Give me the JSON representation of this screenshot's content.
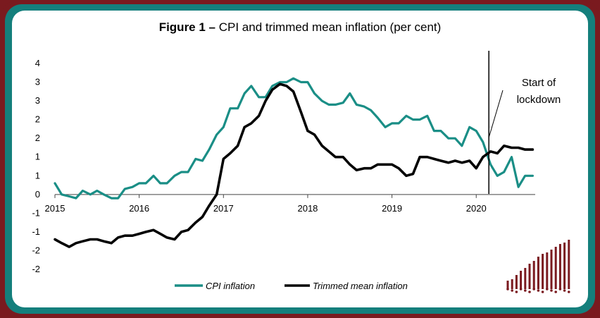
{
  "figure": {
    "title_bold": "Figure 1 –",
    "title_rest": " CPI and trimmed mean inflation (per cent)"
  },
  "chart_data": {
    "type": "line",
    "title": "Figure 1 – CPI and trimmed mean inflation (per cent)",
    "xlabel": "",
    "ylabel": "",
    "y_tick_labels": [
      "4",
      "3",
      "3",
      "2",
      "2",
      "1",
      "1",
      "0",
      "-1",
      "-1",
      "-2",
      "-2"
    ],
    "y_ticks": [
      3.5,
      3,
      2.5,
      2,
      1.5,
      1,
      0.5,
      0,
      -0.5,
      -1,
      -1.5,
      -2
    ],
    "ylim": [
      -2,
      3.5
    ],
    "x_tick_labels": [
      "2015",
      "2016",
      "2017",
      "2018",
      "2019",
      "2020"
    ],
    "x_ticks": [
      2015,
      2016,
      2017,
      2018,
      2019,
      2020
    ],
    "xlim": [
      2015,
      2020.7
    ],
    "legend_position": "bottom",
    "grid": false,
    "series": [
      {
        "name": "CPI inflation",
        "color": "#1a8e86",
        "x": [
          2015.0,
          2015.08,
          2015.17,
          2015.25,
          2015.33,
          2015.42,
          2015.5,
          2015.58,
          2015.67,
          2015.75,
          2015.83,
          2015.92,
          2016.0,
          2016.08,
          2016.17,
          2016.25,
          2016.33,
          2016.42,
          2016.5,
          2016.58,
          2016.67,
          2016.75,
          2016.83,
          2016.92,
          2017.0,
          2017.08,
          2017.17,
          2017.25,
          2017.33,
          2017.42,
          2017.5,
          2017.58,
          2017.67,
          2017.75,
          2017.83,
          2017.92,
          2018.0,
          2018.08,
          2018.17,
          2018.25,
          2018.33,
          2018.42,
          2018.5,
          2018.58,
          2018.67,
          2018.75,
          2018.83,
          2018.92,
          2019.0,
          2019.08,
          2019.17,
          2019.25,
          2019.33,
          2019.42,
          2019.5,
          2019.58,
          2019.67,
          2019.75,
          2019.83,
          2019.92,
          2020.0,
          2020.08,
          2020.17,
          2020.25,
          2020.33,
          2020.42,
          2020.5,
          2020.58,
          2020.67
        ],
        "y": [
          0.3,
          0.0,
          -0.05,
          -0.1,
          0.1,
          0.0,
          0.1,
          0.0,
          -0.1,
          -0.1,
          0.15,
          0.2,
          0.3,
          0.3,
          0.5,
          0.3,
          0.3,
          0.5,
          0.6,
          0.6,
          0.95,
          0.9,
          1.2,
          1.6,
          1.8,
          2.3,
          2.3,
          2.7,
          2.9,
          2.6,
          2.6,
          2.9,
          3.0,
          3.0,
          3.1,
          3.0,
          3.0,
          2.7,
          2.5,
          2.4,
          2.4,
          2.45,
          2.7,
          2.4,
          2.35,
          2.25,
          2.05,
          1.8,
          1.9,
          1.9,
          2.1,
          2.0,
          2.0,
          2.1,
          1.7,
          1.7,
          1.5,
          1.5,
          1.3,
          1.8,
          1.7,
          1.4,
          0.8,
          0.5,
          0.6,
          1.0,
          0.2,
          0.5,
          0.5
        ],
        "connect_to_end": true
      },
      {
        "name": "Trimmed mean inflation",
        "color": "#000000",
        "x": [
          2015.0,
          2015.08,
          2015.17,
          2015.25,
          2015.33,
          2015.42,
          2015.5,
          2015.58,
          2015.67,
          2015.75,
          2015.83,
          2015.92,
          2016.0,
          2016.08,
          2016.17,
          2016.25,
          2016.33,
          2016.42,
          2016.5,
          2016.58,
          2016.67,
          2016.75,
          2016.83,
          2016.92,
          2017.0,
          2017.08,
          2017.17,
          2017.25,
          2017.33,
          2017.42,
          2017.5,
          2017.58,
          2017.67,
          2017.75,
          2017.83,
          2017.92,
          2018.0,
          2018.08,
          2018.17,
          2018.25,
          2018.33,
          2018.42,
          2018.5,
          2018.58,
          2018.67,
          2018.75,
          2018.83,
          2018.92,
          2019.0,
          2019.08,
          2019.17,
          2019.25,
          2019.33,
          2019.42,
          2019.5,
          2019.58,
          2019.67,
          2019.75,
          2019.83,
          2019.92,
          2020.0,
          2020.08,
          2020.17,
          2020.25,
          2020.33,
          2020.42,
          2020.5,
          2020.58,
          2020.67
        ],
        "y": [
          -1.2,
          -1.3,
          -1.4,
          -1.3,
          -1.25,
          -1.2,
          -1.2,
          -1.25,
          -1.3,
          -1.15,
          -1.1,
          -1.1,
          -1.05,
          -1.0,
          -0.95,
          -1.05,
          -1.15,
          -1.2,
          -1.0,
          -0.95,
          -0.75,
          -0.6,
          -0.3,
          0.0,
          0.95,
          1.1,
          1.3,
          1.8,
          1.9,
          2.1,
          2.5,
          2.8,
          2.95,
          2.9,
          2.75,
          2.2,
          1.7,
          1.6,
          1.3,
          1.15,
          1.0,
          1.0,
          0.8,
          0.65,
          0.7,
          0.7,
          0.8,
          0.8,
          0.8,
          0.7,
          0.5,
          0.55,
          1.0,
          1.0,
          0.95,
          0.9,
          0.85,
          0.9,
          0.85,
          0.9,
          0.7,
          1.0,
          1.15,
          1.1,
          1.3,
          1.25,
          1.25,
          1.2,
          1.2
        ]
      }
    ],
    "annotations": [
      {
        "type": "vline",
        "x": 2020.15,
        "label_lines": [
          "Start of",
          "lockdown"
        ]
      }
    ]
  }
}
